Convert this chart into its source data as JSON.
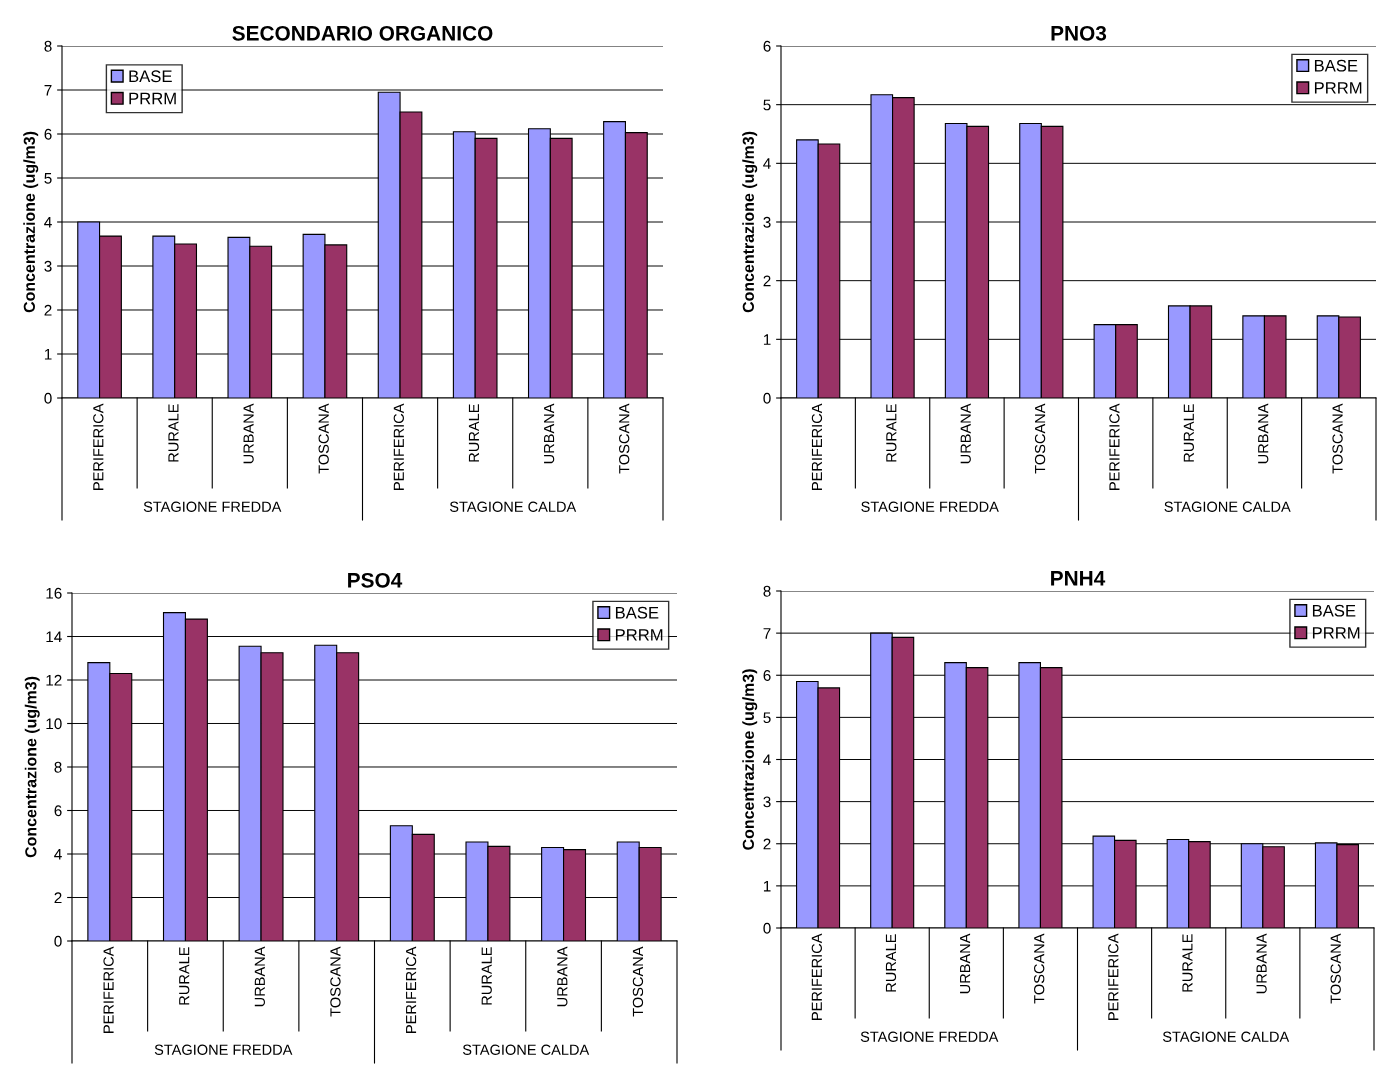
{
  "chart_data": [
    {
      "type": "bar",
      "title": "SECONDARIO ORGANICO",
      "ylabel": "Concentrazione (ug/m3)",
      "categories": [
        "PERIFERICA",
        "RURALE",
        "URBANA",
        "TOSCANA",
        "PERIFERICA",
        "RURALE",
        "URBANA",
        "TOSCANA"
      ],
      "annotations": [
        "STAGIONE FREDDA",
        "STAGIONE CALDA"
      ],
      "ylim": [
        0,
        8
      ],
      "yticks": [
        0,
        1,
        2,
        3,
        4,
        5,
        6,
        7,
        8
      ],
      "grid": "y",
      "legend": "top left",
      "series": [
        {
          "name": "BASE",
          "color": "#9999ff",
          "values": [
            4.0,
            3.68,
            3.65,
            3.72,
            6.95,
            6.05,
            6.12,
            6.28
          ]
        },
        {
          "name": "PRRM",
          "color": "#993366",
          "values": [
            3.68,
            3.5,
            3.45,
            3.48,
            6.5,
            5.9,
            5.9,
            6.03
          ]
        }
      ]
    },
    {
      "type": "bar",
      "title": "PNO3",
      "ylabel": "Concentrazione (ug/m3)",
      "categories": [
        "PERIFERICA",
        "RURALE",
        "URBANA",
        "TOSCANA",
        "PERIFERICA",
        "RURALE",
        "URBANA",
        "TOSCANA"
      ],
      "annotations": [
        "STAGIONE FREDDA",
        "STAGIONE CALDA"
      ],
      "ylim": [
        0,
        6
      ],
      "yticks": [
        0,
        1,
        2,
        3,
        4,
        5,
        6
      ],
      "grid": "y",
      "legend": "top right",
      "series": [
        {
          "name": "BASE",
          "color": "#9999ff",
          "values": [
            4.4,
            5.17,
            4.68,
            4.68,
            1.25,
            1.57,
            1.4,
            1.4
          ]
        },
        {
          "name": "PRRM",
          "color": "#993366",
          "values": [
            4.33,
            5.12,
            4.63,
            4.63,
            1.25,
            1.57,
            1.4,
            1.38
          ]
        }
      ]
    },
    {
      "type": "bar",
      "title": "PSO4",
      "ylabel": "Concentrazione (ug/m3)",
      "categories": [
        "PERIFERICA",
        "RURALE",
        "URBANA",
        "TOSCANA",
        "PERIFERICA",
        "RURALE",
        "URBANA",
        "TOSCANA"
      ],
      "annotations": [
        "STAGIONE FREDDA",
        "STAGIONE CALDA"
      ],
      "ylim": [
        0,
        16
      ],
      "yticks": [
        0,
        2,
        4,
        6,
        8,
        10,
        12,
        14,
        16
      ],
      "grid": "y",
      "legend": "top right",
      "series": [
        {
          "name": "BASE",
          "color": "#9999ff",
          "values": [
            12.8,
            15.1,
            13.55,
            13.6,
            5.3,
            4.55,
            4.3,
            4.55
          ]
        },
        {
          "name": "PRRM",
          "color": "#993366",
          "values": [
            12.3,
            14.8,
            13.25,
            13.25,
            4.9,
            4.35,
            4.2,
            4.3
          ]
        }
      ]
    },
    {
      "type": "bar",
      "title": "PNH4",
      "ylabel": "Concentrazione (ug/m3)",
      "categories": [
        "PERIFERICA",
        "RURALE",
        "URBANA",
        "TOSCANA",
        "PERIFERICA",
        "RURALE",
        "URBANA",
        "TOSCANA"
      ],
      "annotations": [
        "STAGIONE FREDDA",
        "STAGIONE CALDA"
      ],
      "ylim": [
        0,
        8
      ],
      "yticks": [
        0,
        1,
        2,
        3,
        4,
        5,
        6,
        7,
        8
      ],
      "grid": "y",
      "legend": "top right",
      "series": [
        {
          "name": "BASE",
          "color": "#9999ff",
          "values": [
            5.85,
            7.0,
            6.3,
            6.3,
            2.18,
            2.1,
            2.0,
            2.02
          ]
        },
        {
          "name": "PRRM",
          "color": "#993366",
          "values": [
            5.7,
            6.9,
            6.18,
            6.18,
            2.08,
            2.05,
            1.93,
            1.98
          ]
        }
      ]
    }
  ]
}
